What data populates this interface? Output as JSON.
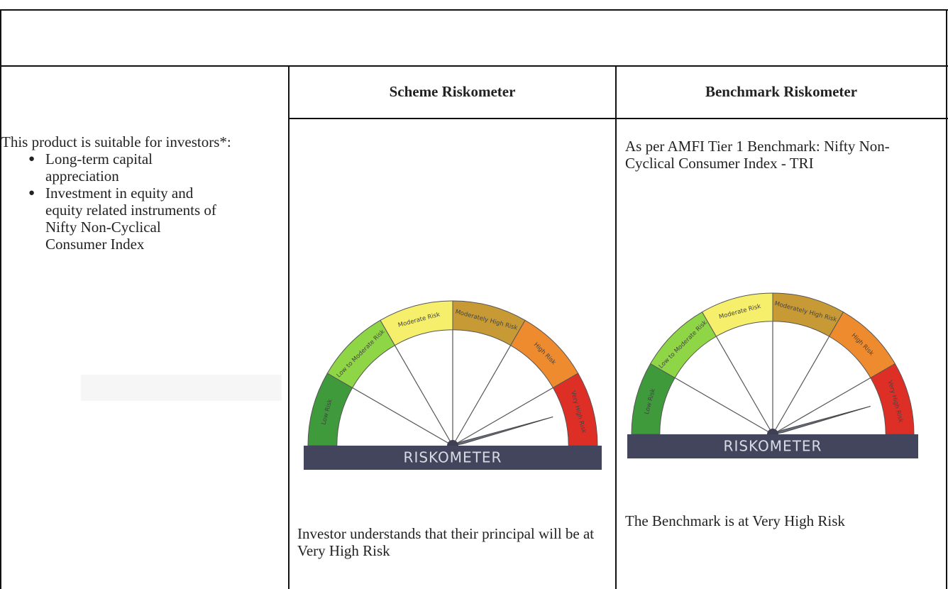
{
  "table": {
    "headers": [
      "Scheme Riskometer",
      "Benchmark Riskometer"
    ],
    "suitability": {
      "intro": "This product is suitable for investors*:",
      "bullets": [
        "Long-term capital appreciation",
        "Investment in equity and equity related instruments of Nifty Non-Cyclical Consumer Index"
      ]
    },
    "scheme": {
      "caption": "Investor understands that their principal will be at Very High Risk"
    },
    "benchmark": {
      "note": "As per AMFI Tier 1 Benchmark: Nifty Non-Cyclical Consumer Index - TRI",
      "caption": "The Benchmark is at Very High Risk"
    }
  },
  "riskometer": {
    "levels": [
      "Low Risk",
      "Low to Moderate Risk",
      "Moderate Risk",
      "Moderately High Risk",
      "High Risk",
      "Very High Risk"
    ],
    "label": "RISKOMETER"
  }
}
